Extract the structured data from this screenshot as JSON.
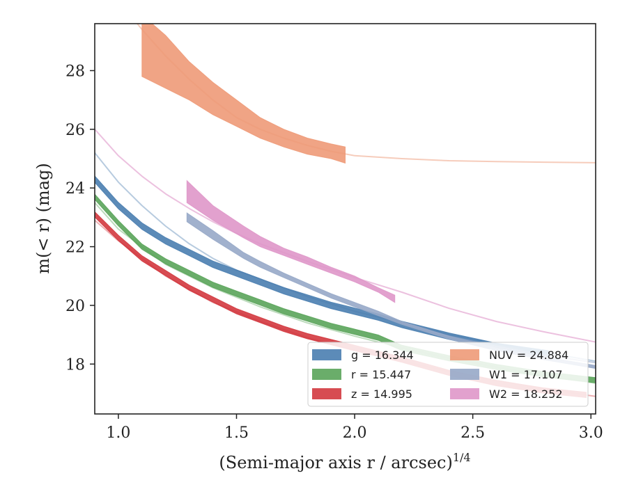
{
  "chart_data": {
    "type": "line",
    "xlabel": "(Semi-major axis r / arcsec)",
    "xlabel_superscript": "1/4",
    "ylabel": "m(< r) (mag)",
    "xlim": [
      0.9,
      3.02
    ],
    "ylim": [
      29.6,
      16.3
    ],
    "y_inverted": true,
    "grid": false,
    "legend_position": "lower-right",
    "x_ticks": [
      "1.0",
      "1.5",
      "2.0",
      "2.5",
      "3.0"
    ],
    "y_ticks": [
      "18",
      "20",
      "22",
      "24",
      "26",
      "28"
    ],
    "x_tick_values": [
      1.0,
      1.5,
      2.0,
      2.5,
      3.0
    ],
    "y_tick_values": [
      18,
      20,
      22,
      24,
      26,
      28
    ],
    "legend": [
      {
        "label": "g = 16.344",
        "color": "#4a7eb0"
      },
      {
        "label": "r = 15.447",
        "color": "#5aa45a"
      },
      {
        "label": "z = 14.995",
        "color": "#d3383f"
      },
      {
        "label": "NUV = 24.884",
        "color": "#ee9a78"
      },
      {
        "label": "W1 = 17.107",
        "color": "#97a8c8"
      },
      {
        "label": "W2 = 18.252",
        "color": "#df97c9"
      }
    ],
    "series": [
      {
        "name": "g = 16.344",
        "color": "#4a7eb0",
        "width": 0.22,
        "x": [
          0.9,
          1.0,
          1.1,
          1.2,
          1.3,
          1.4,
          1.5,
          1.6,
          1.7,
          1.8,
          1.9,
          2.0,
          2.1,
          2.2,
          2.4,
          2.6,
          2.82
        ],
        "y": [
          24.3,
          23.4,
          22.7,
          22.2,
          21.8,
          21.4,
          21.1,
          20.8,
          20.5,
          20.25,
          20.0,
          19.8,
          19.6,
          19.35,
          18.95,
          18.6,
          18.35
        ]
      },
      {
        "name": "g = 16.344 model",
        "color": "#4a7eb0",
        "opacity": 0.4,
        "x": [
          0.9,
          1.0,
          1.1,
          1.2,
          1.3,
          1.4,
          1.5,
          1.6,
          1.7,
          1.8,
          1.9,
          2.0,
          2.2,
          2.4,
          2.6,
          2.8,
          3.02
        ],
        "y": [
          25.2,
          24.2,
          23.4,
          22.7,
          22.1,
          21.6,
          21.2,
          20.9,
          20.6,
          20.3,
          20.05,
          19.8,
          19.4,
          19.0,
          18.7,
          18.4,
          18.1
        ]
      },
      {
        "name": "r = 15.447",
        "color": "#5aa45a",
        "width": 0.18,
        "x": [
          0.9,
          1.0,
          1.1,
          1.2,
          1.3,
          1.4,
          1.5,
          1.6,
          1.7,
          1.8,
          1.9,
          2.0,
          2.1,
          2.2,
          2.4,
          2.6,
          2.8,
          3.02
        ],
        "y": [
          23.7,
          22.8,
          22.0,
          21.5,
          21.1,
          20.7,
          20.4,
          20.1,
          19.8,
          19.55,
          19.3,
          19.1,
          18.9,
          18.55,
          18.2,
          17.9,
          17.65,
          17.45
        ]
      },
      {
        "name": "r = 15.447 model",
        "color": "#5aa45a",
        "opacity": 0.4,
        "x": [
          0.9,
          1.0,
          1.2,
          1.4,
          1.6,
          1.8,
          2.0,
          2.2,
          2.4,
          2.6,
          2.8,
          3.02
        ],
        "y": [
          23.5,
          22.6,
          21.4,
          20.6,
          19.95,
          19.4,
          18.95,
          18.55,
          18.2,
          17.9,
          17.6,
          17.35
        ]
      },
      {
        "name": "z = 14.995",
        "color": "#d3383f",
        "width": 0.18,
        "x": [
          0.9,
          1.0,
          1.1,
          1.2,
          1.3,
          1.4,
          1.5,
          1.6,
          1.7,
          1.8,
          1.9,
          2.0,
          2.1,
          2.2,
          2.4,
          2.6,
          2.8,
          2.98
        ],
        "y": [
          23.1,
          22.3,
          21.6,
          21.1,
          20.6,
          20.2,
          19.8,
          19.5,
          19.2,
          18.95,
          18.75,
          18.55,
          18.35,
          18.15,
          17.7,
          17.35,
          17.1,
          16.95
        ]
      },
      {
        "name": "z = 14.995 model",
        "color": "#d3383f",
        "opacity": 0.4,
        "x": [
          0.9,
          1.0,
          1.2,
          1.4,
          1.6,
          1.8,
          2.0,
          2.2,
          2.4,
          2.6,
          2.8,
          3.02
        ],
        "y": [
          22.9,
          22.2,
          21.0,
          20.1,
          19.45,
          18.9,
          18.45,
          18.1,
          17.75,
          17.45,
          17.15,
          16.9
        ]
      },
      {
        "name": "NUV = 24.884",
        "color": "#ee9a78",
        "x": [
          1.1,
          1.2,
          1.3,
          1.4,
          1.5,
          1.6,
          1.7,
          1.8,
          1.9,
          1.96
        ],
        "y_upper": [
          27.8,
          27.4,
          27.0,
          26.5,
          26.1,
          25.7,
          25.4,
          25.15,
          25.0,
          24.85
        ],
        "y_lower": [
          29.9,
          29.2,
          28.3,
          27.6,
          27.0,
          26.4,
          26.0,
          25.7,
          25.5,
          25.4
        ]
      },
      {
        "name": "NUV = 24.884 model",
        "color": "#ee9a78",
        "opacity": 0.5,
        "x": [
          1.05,
          1.1,
          1.2,
          1.3,
          1.4,
          1.5,
          1.6,
          1.7,
          1.8,
          1.9,
          2.0,
          2.2,
          2.4,
          2.6,
          2.8,
          3.02
        ],
        "y": [
          29.9,
          29.4,
          28.5,
          27.7,
          27.0,
          26.4,
          26.0,
          25.7,
          25.45,
          25.25,
          25.1,
          25.0,
          24.93,
          24.9,
          24.88,
          24.86
        ]
      },
      {
        "name": "W1 = 17.107",
        "color": "#97a8c8",
        "x": [
          1.29,
          1.4,
          1.53,
          1.6,
          1.7,
          1.8,
          1.9,
          2.0,
          2.1,
          2.2,
          2.4,
          2.6,
          2.8,
          3.02
        ],
        "y_upper": [
          22.85,
          22.25,
          21.6,
          21.3,
          20.95,
          20.6,
          20.25,
          19.95,
          19.65,
          19.35,
          18.85,
          18.45,
          18.15,
          17.85
        ],
        "y_lower": [
          23.15,
          22.55,
          21.8,
          21.5,
          21.1,
          20.75,
          20.4,
          20.1,
          19.8,
          19.45,
          18.95,
          18.55,
          18.25,
          17.95
        ]
      },
      {
        "name": "W1 = 17.107 model",
        "color": "#97a8c8",
        "opacity": 0.6,
        "x": [
          2.2,
          2.4,
          2.6,
          2.8,
          3.02
        ],
        "y": [
          19.4,
          18.95,
          18.6,
          18.3,
          18.05
        ]
      },
      {
        "name": "W2 = 18.252",
        "color": "#df97c9",
        "x": [
          1.29,
          1.4,
          1.53,
          1.6,
          1.7,
          1.8,
          1.9,
          2.0,
          2.1,
          2.17
        ],
        "y_upper": [
          23.5,
          22.9,
          22.3,
          22.0,
          21.7,
          21.4,
          21.1,
          20.8,
          20.45,
          20.1
        ],
        "y_lower": [
          24.25,
          23.4,
          22.7,
          22.35,
          21.95,
          21.65,
          21.3,
          21.0,
          20.6,
          20.35
        ]
      },
      {
        "name": "W2 = 18.252 model",
        "color": "#df97c9",
        "opacity": 0.6,
        "x": [
          0.9,
          1.0,
          1.1,
          1.2,
          1.3,
          1.4,
          1.5,
          1.6,
          1.8,
          2.0,
          2.2,
          2.4,
          2.6,
          2.8,
          3.02
        ],
        "y": [
          26.0,
          25.1,
          24.4,
          23.8,
          23.3,
          22.85,
          22.45,
          22.1,
          21.5,
          20.95,
          20.45,
          19.9,
          19.45,
          19.1,
          18.75
        ]
      }
    ]
  }
}
